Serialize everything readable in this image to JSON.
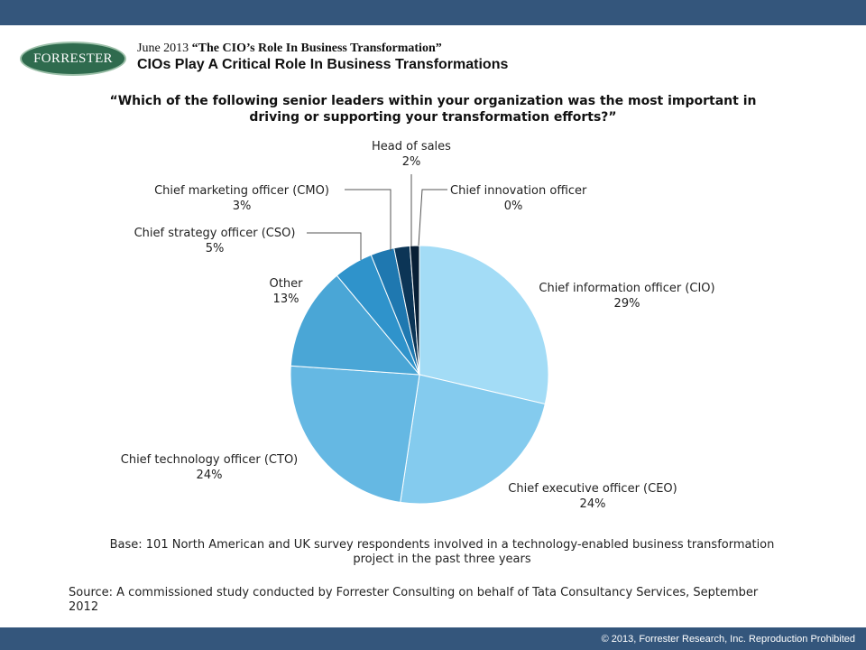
{
  "header": {
    "logo_text": "FORRESTER",
    "report_date": "June 2013",
    "report_title": "“The CIO’s Role In Business Transformation”",
    "slide_title": "CIOs Play A Critical Role In Business Transformations"
  },
  "question": "“Which of the following senior leaders within your organization was the most important in driving or supporting your transformation efforts?”",
  "chart_data": {
    "type": "pie",
    "title": "",
    "value_suffix": "%",
    "slices": [
      {
        "label": "Chief information officer (CIO)",
        "value": 29,
        "color": "#a3dcf6"
      },
      {
        "label": "Chief executive officer (CEO)",
        "value": 24,
        "color": "#84cbee"
      },
      {
        "label": "Chief technology officer (CTO)",
        "value": 24,
        "color": "#65b8e3"
      },
      {
        "label": "Other",
        "value": 13,
        "color": "#4aa6d6"
      },
      {
        "label": "Chief strategy officer (CSO)",
        "value": 5,
        "color": "#2f93cb"
      },
      {
        "label": "Chief marketing officer (CMO)",
        "value": 3,
        "color": "#1f78b0"
      },
      {
        "label": "Head of sales",
        "value": 2,
        "color": "#0c3556"
      },
      {
        "label": "Chief innovation officer",
        "value": 0,
        "color": "#081f35"
      }
    ]
  },
  "base_note": "Base: 101 North American and UK survey respondents involved in a technology-enabled business transformation project in the past three years",
  "source_note": "Source: A commissioned study conducted by Forrester Consulting on behalf of Tata Consultancy Services, September 2012",
  "footer": {
    "copyright": "© 2013, Forrester Research, Inc. Reproduction Prohibited"
  }
}
